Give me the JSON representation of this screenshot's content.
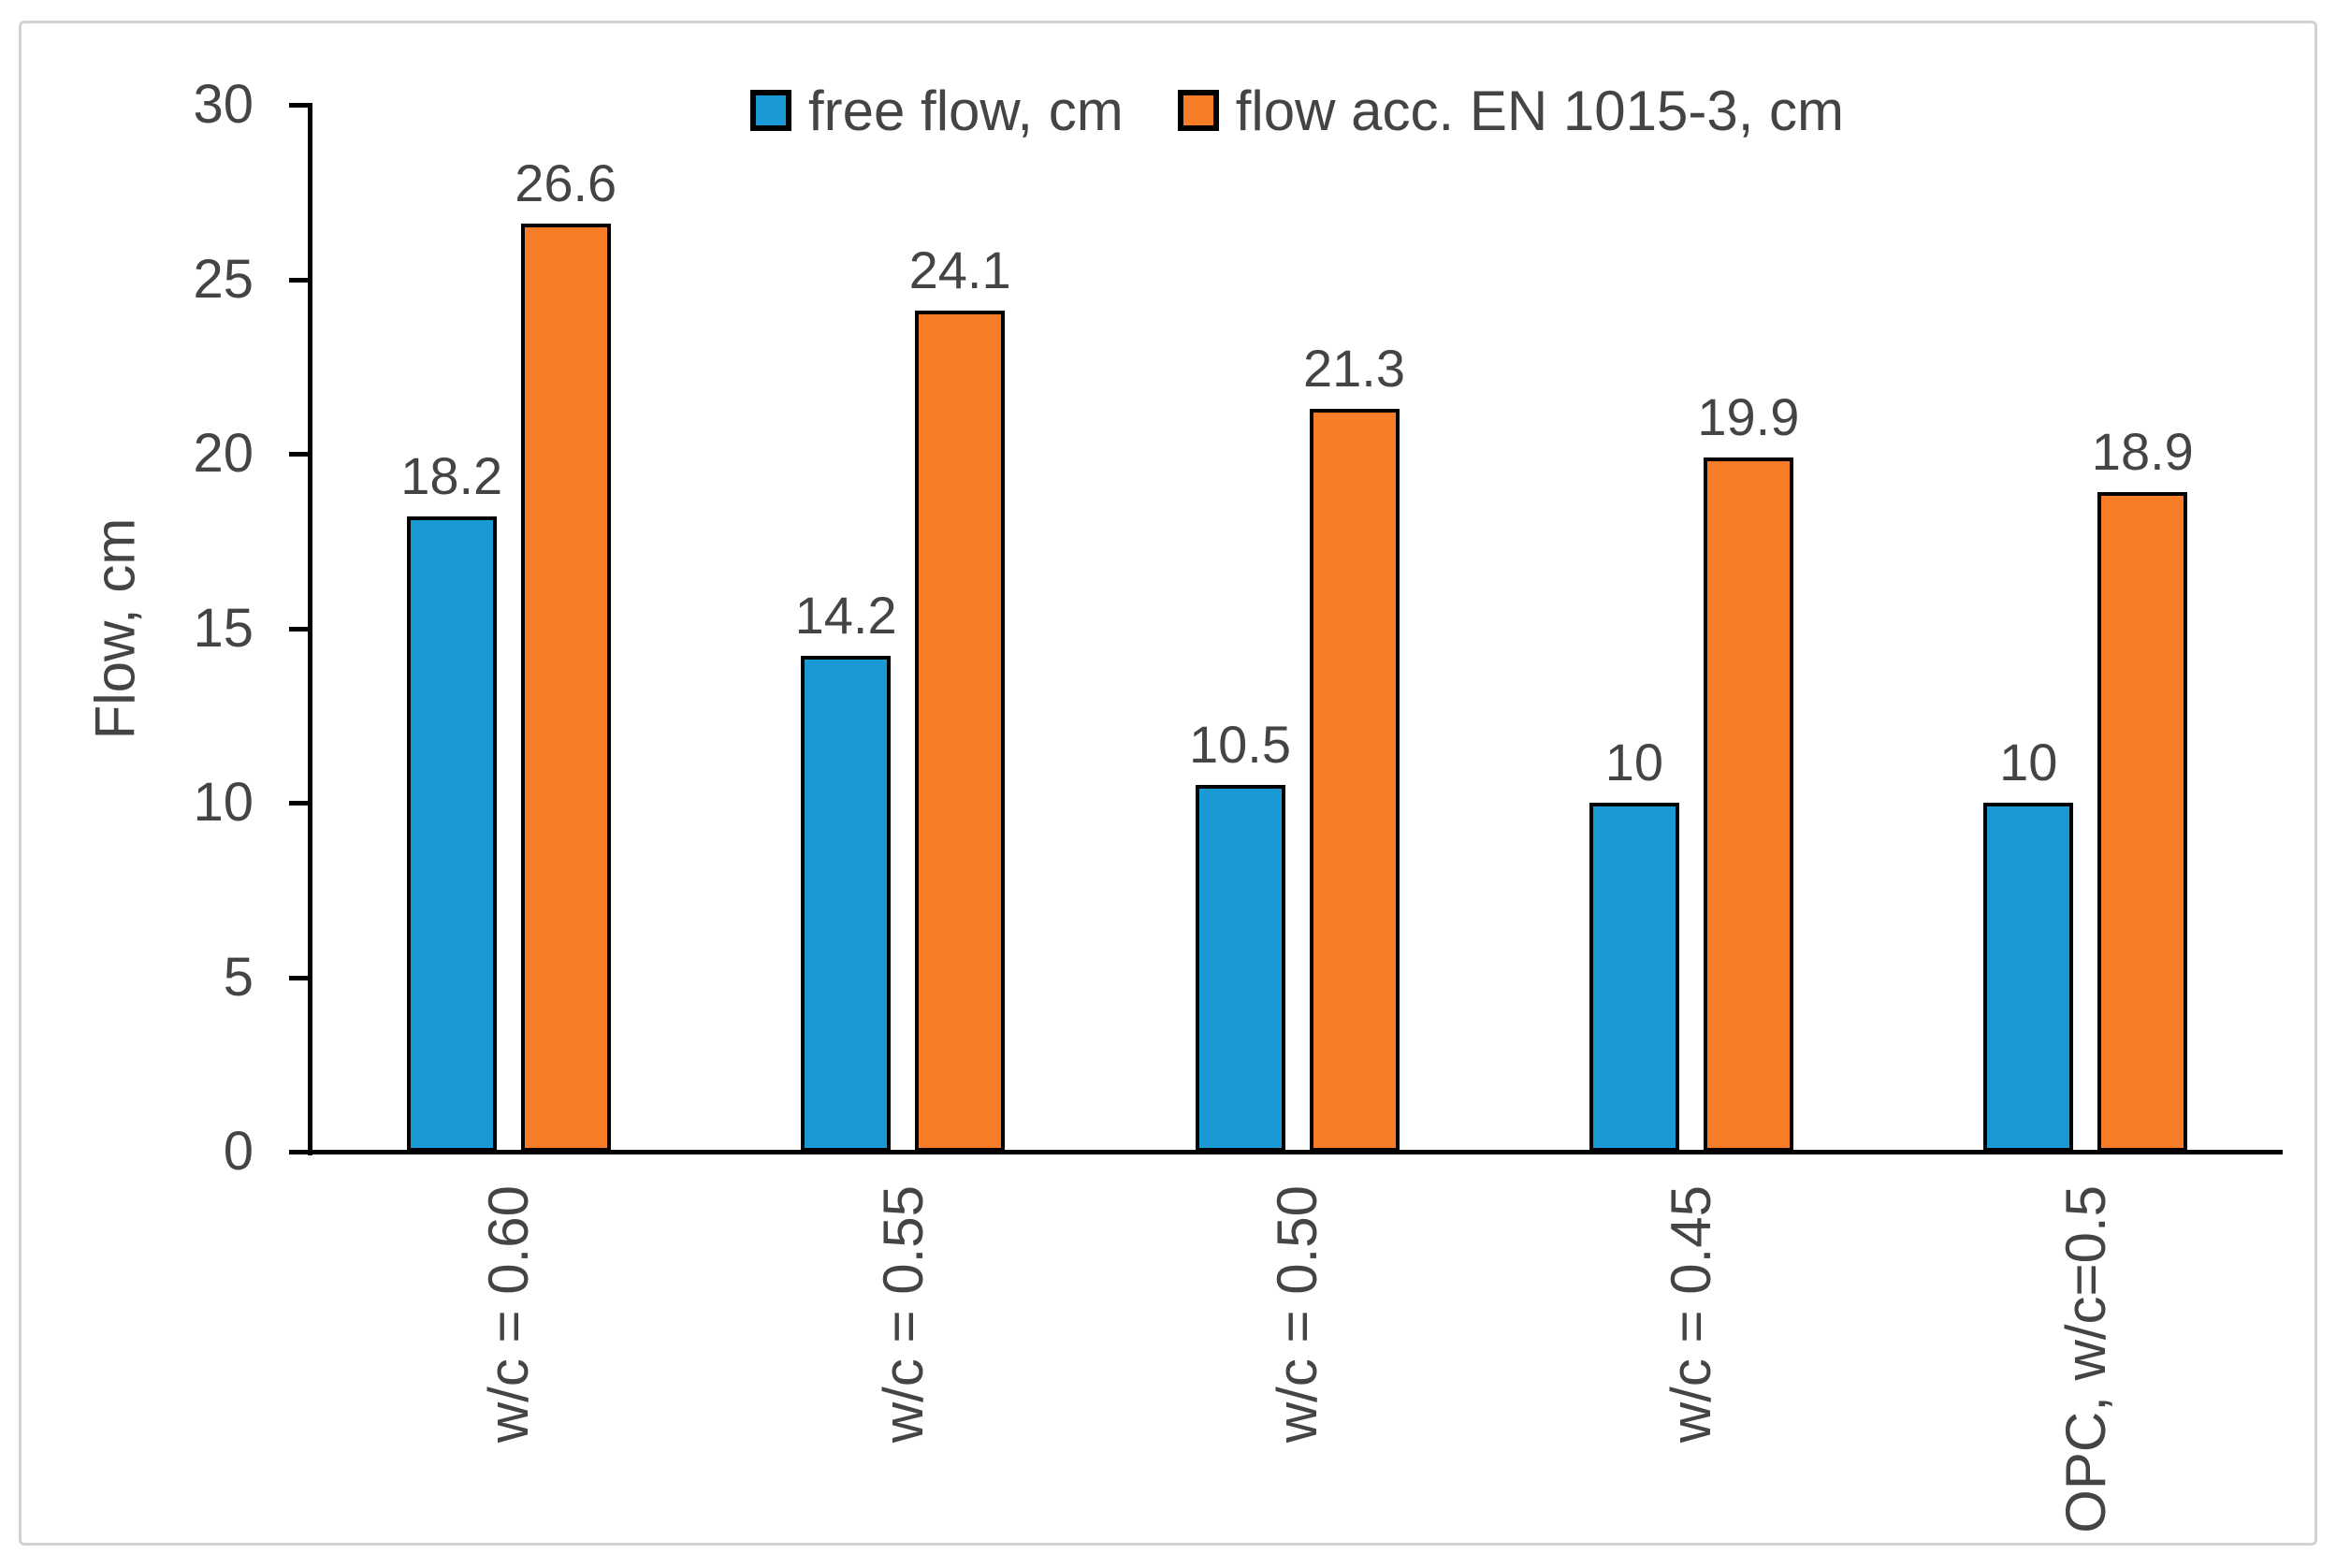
{
  "chart_data": {
    "type": "bar",
    "ylabel": "Flow, cm",
    "categories": [
      "w/c = 0.60",
      "w/c = 0.55",
      "w/c = 0.50",
      "w/c = 0.45",
      "OPC, w/c=0.5"
    ],
    "series": [
      {
        "name": "free flow, cm",
        "color": "#199AD4",
        "values": [
          18.2,
          14.2,
          10.5,
          10,
          10
        ],
        "value_labels": [
          "18.2",
          "14.2",
          "10.5",
          "10",
          "10"
        ]
      },
      {
        "name": "flow acc. EN 1015-3, cm",
        "color": "#F97D27",
        "values": [
          26.6,
          24.1,
          21.3,
          19.9,
          18.9
        ],
        "value_labels": [
          "26.6",
          "24.1",
          "21.3",
          "19.9",
          "18.9"
        ]
      }
    ],
    "ylim": [
      0,
      30
    ],
    "yticks": [
      0,
      5,
      10,
      15,
      20,
      25,
      30
    ],
    "ytick_labels": [
      "0",
      "5",
      "10",
      "15",
      "20",
      "25",
      "30"
    ],
    "grid": false,
    "legend_position": "top-center",
    "bar_outline_color": "#000000",
    "axis_color": "#000000",
    "text_color": "#444444",
    "frame_color": "#D2D2D2",
    "background_color": "#FFFFFF"
  }
}
